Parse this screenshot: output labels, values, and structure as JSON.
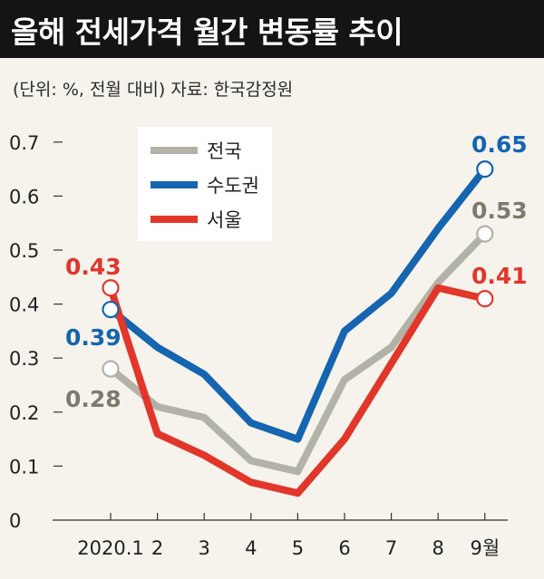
{
  "header": {
    "title": "올해 전세가격 월간 변동률 추이",
    "subtitle": "(단위: %, 전월 대비)  자료: 한국감정원"
  },
  "colors": {
    "national": "#b3b2a6",
    "capital": "#1565b0",
    "seoul": "#e2362b",
    "national_label": "#7d7a6c",
    "capital_label": "#1565b0",
    "seoul_label": "#e2362b"
  },
  "chart_data": {
    "type": "line",
    "title": "올해 전세가격 월간 변동률 추이",
    "ylabel": "%",
    "categories": [
      "2020.1",
      "2",
      "3",
      "4",
      "5",
      "6",
      "7",
      "8",
      "9월"
    ],
    "ylim": [
      0,
      0.7
    ],
    "yticks": [
      "0",
      "0.1",
      "0.2",
      "0.3",
      "0.4",
      "0.5",
      "0.6",
      "0.7"
    ],
    "legend_position": "top-left",
    "series": [
      {
        "name": "전국",
        "key": "national",
        "values": [
          0.28,
          0.21,
          0.19,
          0.11,
          0.09,
          0.26,
          0.32,
          0.44,
          0.53
        ]
      },
      {
        "name": "수도권",
        "key": "capital",
        "values": [
          0.39,
          0.32,
          0.27,
          0.18,
          0.15,
          0.35,
          0.42,
          0.54,
          0.65
        ]
      },
      {
        "name": "서울",
        "key": "seoul",
        "values": [
          0.43,
          0.16,
          0.12,
          0.07,
          0.05,
          0.15,
          0.29,
          0.43,
          0.41
        ]
      }
    ],
    "annotations": [
      {
        "series": "national",
        "text": "0.28"
      },
      {
        "series": "national",
        "text": "0.53"
      },
      {
        "series": "capital",
        "text": "0.39"
      },
      {
        "series": "capital",
        "text": "0.65"
      },
      {
        "series": "seoul",
        "text": "0.43"
      },
      {
        "series": "seoul",
        "text": "0.41"
      }
    ]
  }
}
